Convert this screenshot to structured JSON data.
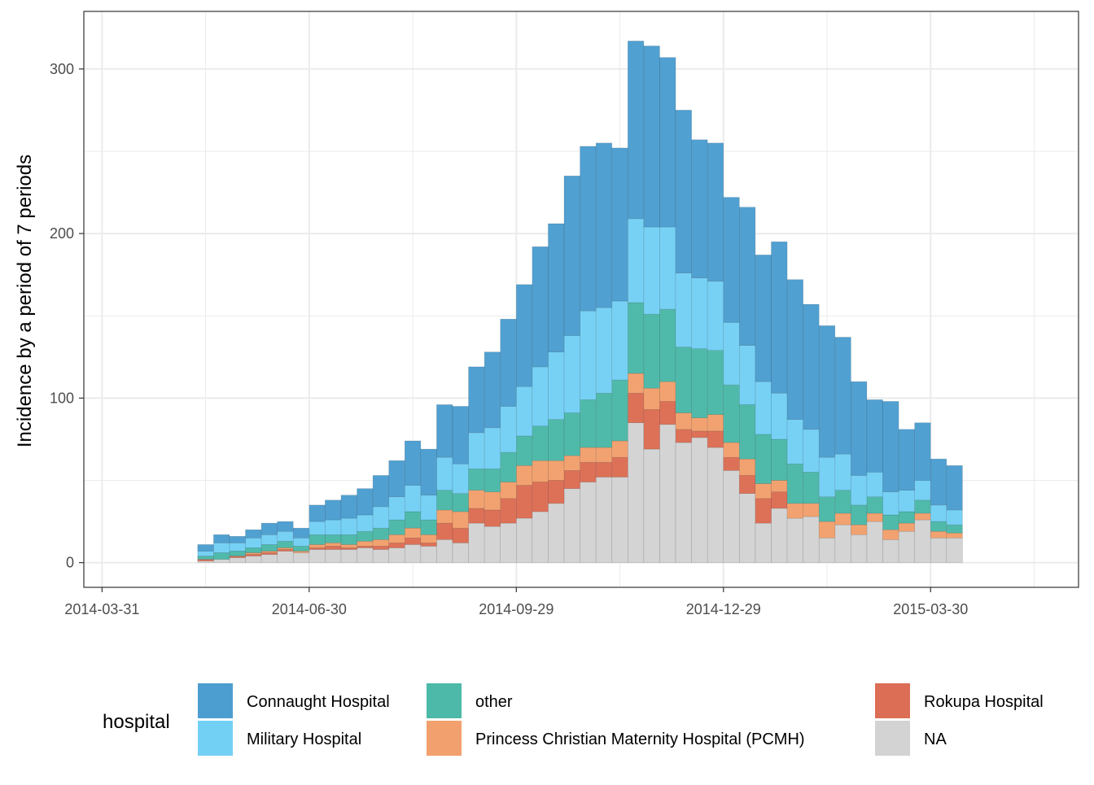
{
  "chart_data": {
    "type": "bar",
    "stacked": true,
    "ylabel": "Incidence by a period of 7 periods",
    "xlabel": "",
    "ylim": [
      -15,
      335
    ],
    "yticks": [
      0,
      100,
      200,
      300
    ],
    "xlim": [
      "2014-03-23",
      "2015-06-03"
    ],
    "xticks": [
      "2014-03-31",
      "2014-06-30",
      "2014-09-29",
      "2014-12-29",
      "2015-03-30"
    ],
    "xtick_labels": [
      "2014-03-31",
      "2014-06-30",
      "2014-09-29",
      "2014-12-29",
      "2015-03-30"
    ],
    "grid": true,
    "legend": {
      "title": "hospital",
      "position": "bottom"
    },
    "bin_days": 7,
    "x": [
      "2014-04-07",
      "2014-04-14",
      "2014-04-21",
      "2014-04-28",
      "2014-05-05",
      "2014-05-12",
      "2014-05-19",
      "2014-05-26",
      "2014-06-02",
      "2014-06-09",
      "2014-06-16",
      "2014-06-23",
      "2014-06-30",
      "2014-07-07",
      "2014-07-14",
      "2014-07-21",
      "2014-07-28",
      "2014-08-04",
      "2014-08-11",
      "2014-08-18",
      "2014-08-25",
      "2014-09-01",
      "2014-09-08",
      "2014-09-15",
      "2014-09-22",
      "2014-09-29",
      "2014-10-06",
      "2014-10-13",
      "2014-10-20",
      "2014-10-27",
      "2014-11-03",
      "2014-11-10",
      "2014-11-17",
      "2014-11-24",
      "2014-12-01",
      "2014-12-08",
      "2014-12-15",
      "2014-12-22",
      "2014-12-29",
      "2015-01-05",
      "2015-01-12",
      "2015-01-19",
      "2015-01-26",
      "2015-02-02",
      "2015-02-09",
      "2015-02-16",
      "2015-02-23",
      "2015-03-02",
      "2015-03-09",
      "2015-03-16",
      "2015-03-23",
      "2015-03-30",
      "2015-04-06",
      "2015-04-13",
      "2015-04-20",
      "2015-04-27",
      "2015-05-04",
      "2015-05-11",
      "2015-05-18",
      "2015-05-25",
      "2015-06-01"
    ],
    "series": [
      {
        "name": "NA",
        "color": "#D3D3D3",
        "values": [
          0,
          0,
          0,
          0,
          0,
          1,
          2,
          3,
          4,
          5,
          7,
          6,
          8,
          8,
          8,
          9,
          8,
          9,
          11,
          10,
          14,
          12,
          24,
          22,
          24,
          27,
          31,
          36,
          45,
          49,
          52,
          52,
          85,
          69,
          84,
          73,
          76,
          70,
          56,
          42,
          24,
          33,
          27,
          28,
          15,
          23,
          17,
          25,
          14,
          19,
          26,
          15,
          15,
          0,
          0,
          0,
          0,
          0,
          0,
          0,
          0
        ]
      },
      {
        "name": "Rokupa Hospital",
        "color": "#DC6E55",
        "values": [
          0,
          0,
          0,
          0,
          0,
          1,
          0,
          1,
          1,
          1,
          1,
          0,
          1,
          2,
          1,
          1,
          2,
          3,
          4,
          2,
          10,
          9,
          9,
          10,
          15,
          20,
          18,
          14,
          11,
          12,
          9,
          12,
          18,
          24,
          14,
          8,
          4,
          10,
          8,
          11,
          15,
          10,
          0,
          0,
          0,
          0,
          0,
          0,
          0,
          0,
          0,
          0,
          0,
          0,
          0,
          0,
          0,
          0,
          0,
          0,
          0
        ]
      },
      {
        "name": "Princess Christian Maternity Hospital (PCMH)",
        "color": "#F2A06D",
        "values": [
          0,
          0,
          0,
          0,
          0,
          0,
          0,
          0,
          1,
          1,
          1,
          1,
          2,
          2,
          2,
          3,
          4,
          5,
          6,
          5,
          8,
          10,
          11,
          11,
          10,
          12,
          13,
          12,
          9,
          9,
          9,
          10,
          12,
          13,
          12,
          10,
          8,
          10,
          9,
          10,
          9,
          7,
          9,
          8,
          10,
          7,
          6,
          5,
          6,
          5,
          4,
          4,
          3,
          0,
          0,
          0,
          0,
          0,
          0,
          0,
          0
        ]
      },
      {
        "name": "other",
        "color": "#4DB9A8",
        "values": [
          0,
          0,
          0,
          0,
          0,
          2,
          4,
          3,
          3,
          4,
          4,
          3,
          6,
          5,
          6,
          6,
          7,
          9,
          10,
          9,
          12,
          11,
          13,
          14,
          18,
          18,
          21,
          25,
          26,
          29,
          33,
          37,
          43,
          45,
          44,
          40,
          42,
          39,
          35,
          33,
          30,
          25,
          24,
          19,
          15,
          14,
          12,
          10,
          9,
          7,
          8,
          6,
          5,
          0,
          0,
          0,
          0,
          0,
          0,
          0,
          0
        ]
      },
      {
        "name": "Military Hospital",
        "color": "#73D0F5",
        "values": [
          0,
          0,
          0,
          0,
          0,
          3,
          6,
          5,
          6,
          6,
          6,
          5,
          8,
          9,
          10,
          10,
          13,
          14,
          16,
          15,
          20,
          18,
          22,
          25,
          28,
          30,
          36,
          41,
          47,
          54,
          52,
          48,
          51,
          53,
          50,
          45,
          43,
          42,
          38,
          36,
          32,
          28,
          27,
          26,
          24,
          22,
          18,
          15,
          14,
          13,
          12,
          10,
          9,
          0,
          0,
          0,
          0,
          0,
          0,
          0,
          0
        ]
      },
      {
        "name": "Connaught Hospital",
        "color": "#4C9ED0",
        "values": [
          0,
          0,
          0,
          0,
          0,
          4,
          5,
          4,
          5,
          7,
          6,
          6,
          10,
          12,
          14,
          16,
          19,
          22,
          27,
          28,
          32,
          35,
          40,
          46,
          53,
          62,
          73,
          78,
          97,
          100,
          100,
          93,
          108,
          110,
          103,
          99,
          84,
          84,
          76,
          84,
          77,
          92,
          85,
          76,
          80,
          71,
          57,
          44,
          55,
          37,
          35,
          28,
          27,
          0,
          0,
          0,
          0,
          0,
          0,
          0,
          0
        ]
      }
    ]
  }
}
